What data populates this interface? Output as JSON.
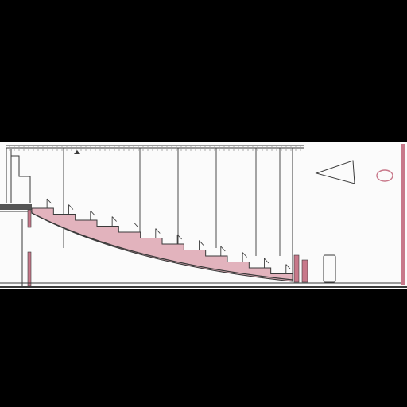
{
  "drawing": {
    "kind": "building-section",
    "background": "#000000",
    "paper": "#fbfbfb",
    "line_color": "#3a3a3a",
    "light_line_color": "#9a9a9a",
    "accent": "#c8788a",
    "accent_light": "#e2b3bd",
    "step_count": 12,
    "hanging_rods": 6,
    "elements": [
      "ceiling-truss",
      "raked-seating",
      "left-balcony",
      "stage-end-posts",
      "door-opening",
      "triangle-ornament",
      "oval-ornament"
    ]
  }
}
